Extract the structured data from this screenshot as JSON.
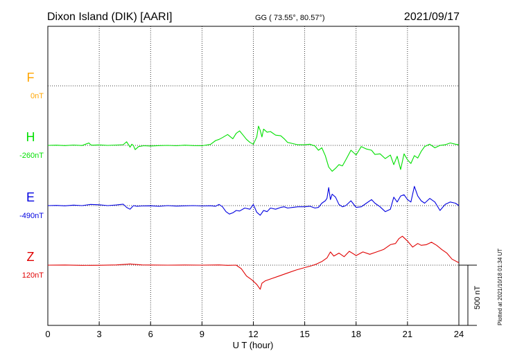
{
  "header": {
    "station": "Dixon Island (DIK)  [AARI]",
    "coords": "GG ( 73.55°,  80.57°)",
    "date": "2021/09/17"
  },
  "plotted_note": "Plotted at 2021/10/18 01:34 UT",
  "scale_label": "500 nT",
  "colors": {
    "F": "#ffa500",
    "H": "#00e000",
    "E": "#0000e0",
    "Z": "#e00000",
    "grid": "#000000"
  },
  "chart_data": {
    "type": "line",
    "title": "Dixon Island (DIK)  [AARI]",
    "xlabel": "U T (hour)",
    "ylabel": "",
    "xlim": [
      0,
      24
    ],
    "xticks": [
      0,
      3,
      6,
      9,
      12,
      15,
      18,
      21,
      24
    ],
    "xtick_labels": [
      "0",
      "3",
      "6",
      "9",
      "12",
      "15",
      "18",
      "21",
      "24"
    ],
    "grid": true,
    "scale_bar_nT": 500,
    "series": [
      {
        "name": "F",
        "baseline_label": "0nT",
        "baseline_nT": 0,
        "color": "#ffa500",
        "x": [],
        "y": []
      },
      {
        "name": "H",
        "baseline_label": "-260nT",
        "baseline_nT": -260,
        "color": "#00e000",
        "x": [
          0,
          0.5,
          1,
          1.5,
          2,
          2.4,
          2.5,
          2.6,
          3,
          3.5,
          4,
          4.4,
          4.6,
          4.8,
          4.9,
          5.0,
          5.1,
          5.3,
          5.6,
          6,
          6.5,
          7,
          7.5,
          8,
          8.5,
          9,
          9.5,
          9.8,
          10.0,
          10.2,
          10.5,
          10.8,
          11.0,
          11.2,
          11.4,
          11.6,
          11.8,
          12.0,
          12.2,
          12.3,
          12.4,
          12.5,
          12.6,
          12.8,
          13.0,
          13.3,
          13.6,
          13.8,
          14.0,
          14.3,
          14.6,
          15.0,
          15.3,
          15.6,
          15.8,
          16.0,
          16.2,
          16.4,
          16.6,
          16.8,
          17.0,
          17.2,
          17.4,
          17.7,
          18.0,
          18.3,
          18.6,
          18.9,
          19.1,
          19.4,
          19.7,
          20.0,
          20.2,
          20.4,
          20.6,
          20.8,
          21.0,
          21.2,
          21.4,
          21.6,
          21.8,
          22.0,
          22.3,
          22.6,
          22.9,
          23.2,
          23.5,
          23.8,
          24.0
        ],
        "y": [
          -260,
          -258,
          -262,
          -257,
          -261,
          -240,
          -255,
          -258,
          -256,
          -260,
          -257,
          -254,
          -230,
          -275,
          -250,
          -262,
          -295,
          -270,
          -263,
          -265,
          -262,
          -260,
          -263,
          -258,
          -262,
          -263,
          -252,
          -220,
          -210,
          -195,
          -170,
          -205,
          -160,
          -140,
          -175,
          -210,
          -235,
          -250,
          -190,
          -100,
          -135,
          -190,
          -125,
          -150,
          -145,
          -175,
          -180,
          -205,
          -235,
          -245,
          -255,
          -255,
          -250,
          -265,
          -300,
          -280,
          -345,
          -440,
          -475,
          -450,
          -420,
          -430,
          -380,
          -300,
          -340,
          -270,
          -290,
          -300,
          -335,
          -330,
          -370,
          -340,
          -420,
          -350,
          -460,
          -330,
          -380,
          -410,
          -345,
          -365,
          -310,
          -270,
          -250,
          -280,
          -260,
          -255,
          -240,
          -250,
          -255
        ]
      },
      {
        "name": "E",
        "baseline_label": "-490nT",
        "baseline_nT": -490,
        "color": "#0000e0",
        "x": [
          0,
          0.5,
          1,
          1.5,
          2,
          2.5,
          3,
          3.5,
          4,
          4.4,
          4.6,
          4.8,
          5.0,
          5.2,
          5.5,
          6,
          6.5,
          7,
          7.5,
          8,
          8.5,
          9,
          9.5,
          9.8,
          10.0,
          10.2,
          10.4,
          10.6,
          10.8,
          11.0,
          11.2,
          11.5,
          11.8,
          12.0,
          12.2,
          12.4,
          12.6,
          12.8,
          13.0,
          13.3,
          13.6,
          13.8,
          14.0,
          14.3,
          14.6,
          15.0,
          15.3,
          15.6,
          15.8,
          16.0,
          16.2,
          16.3,
          16.4,
          16.5,
          16.6,
          16.8,
          17.0,
          17.2,
          17.4,
          17.7,
          18.0,
          18.3,
          18.6,
          18.9,
          19.1,
          19.4,
          19.7,
          20.0,
          20.2,
          20.4,
          20.6,
          20.8,
          21.0,
          21.2,
          21.4,
          21.6,
          21.8,
          22.0,
          22.3,
          22.6,
          22.9,
          23.2,
          23.5,
          23.8,
          24.0
        ],
        "y": [
          -490,
          -488,
          -492,
          -486,
          -490,
          -480,
          -483,
          -490,
          -485,
          -478,
          -505,
          -520,
          -490,
          -495,
          -493,
          -492,
          -495,
          -490,
          -494,
          -492,
          -490,
          -493,
          -491,
          -495,
          -480,
          -500,
          -540,
          -560,
          -550,
          -530,
          -535,
          -510,
          -520,
          -480,
          -545,
          -570,
          -530,
          -540,
          -510,
          -520,
          -505,
          -500,
          -510,
          -505,
          -500,
          -500,
          -495,
          -510,
          -505,
          -470,
          -450,
          -430,
          -340,
          -440,
          -395,
          -420,
          -480,
          -500,
          -490,
          -450,
          -505,
          -500,
          -470,
          -440,
          -470,
          -500,
          -540,
          -520,
          -420,
          -460,
          -410,
          -400,
          -440,
          -460,
          -330,
          -410,
          -450,
          -470,
          -430,
          -460,
          -530,
          -480,
          -460,
          -470,
          -490
        ]
      },
      {
        "name": "Z",
        "baseline_label": "120nT",
        "baseline_nT": 120,
        "color": "#e00000",
        "x": [
          0,
          1,
          2,
          3,
          4,
          4.8,
          5.5,
          6,
          7,
          8,
          9,
          10,
          10.5,
          11.0,
          11.3,
          11.6,
          11.9,
          12.2,
          12.4,
          12.5,
          12.7,
          13.0,
          13.5,
          14.0,
          14.5,
          15.0,
          15.4,
          15.7,
          16.0,
          16.3,
          16.5,
          16.7,
          17.0,
          17.3,
          17.6,
          18.0,
          18.4,
          18.8,
          19.2,
          19.6,
          20.0,
          20.3,
          20.5,
          20.7,
          21.0,
          21.3,
          21.6,
          21.8,
          22.1,
          22.4,
          22.7,
          23.0,
          23.3,
          23.6,
          24.0
        ],
        "y": [
          120,
          121,
          118,
          119,
          122,
          130,
          122,
          121,
          120,
          121,
          120,
          122,
          118,
          120,
          90,
          30,
          0,
          -40,
          -80,
          -30,
          -10,
          5,
          30,
          55,
          80,
          100,
          115,
          130,
          150,
          180,
          230,
          195,
          220,
          190,
          235,
          200,
          230,
          210,
          230,
          250,
          290,
          300,
          340,
          360,
          320,
          270,
          300,
          285,
          290,
          310,
          285,
          250,
          220,
          170,
          140
        ]
      }
    ]
  }
}
